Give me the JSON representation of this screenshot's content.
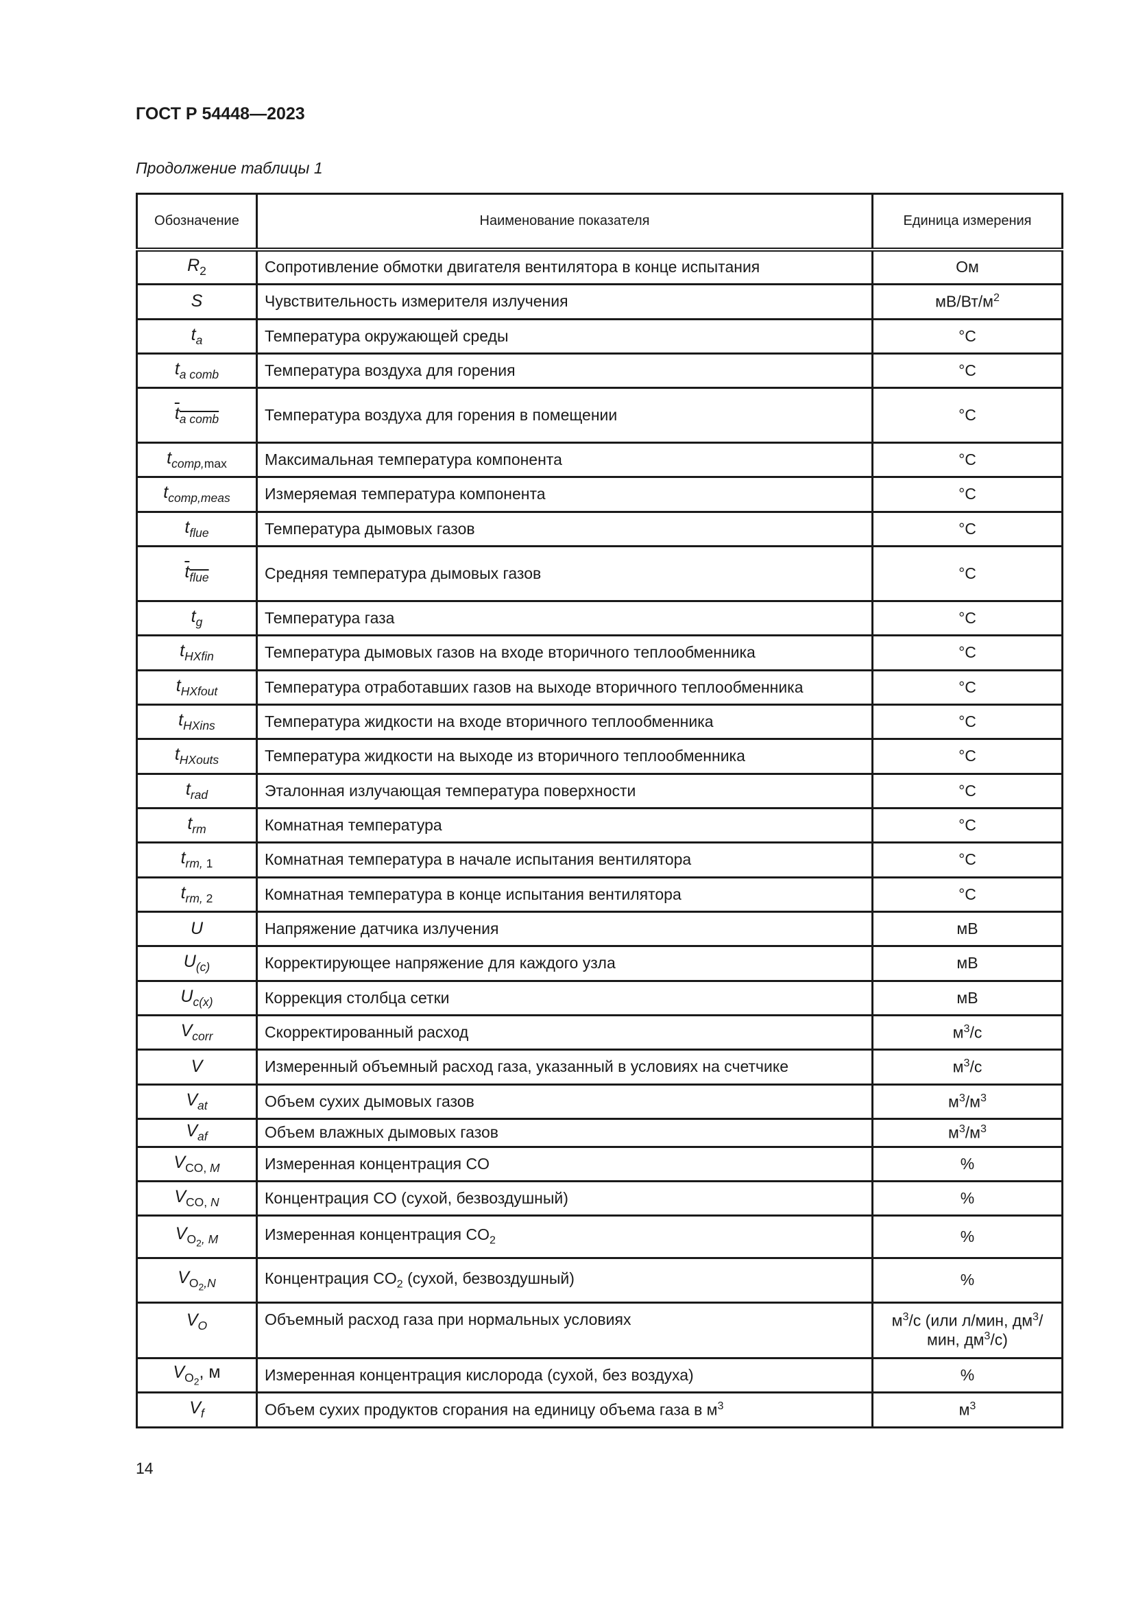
{
  "header": {
    "doc_title": "ГОСТ Р 54448—2023",
    "caption": "Продолжение таблицы 1"
  },
  "table": {
    "columns": [
      "Обозначение",
      "Наименование показателя",
      "Единица измерения"
    ],
    "rows": [
      {
        "symbol": {
          "base": "R",
          "sub": [
            {
              "t": "2",
              "up": true
            }
          ]
        },
        "name": [
          {
            "t": "Сопротивление обмотки двигателя вентилятора в конце испытания"
          }
        ],
        "unit": [
          {
            "t": "Ом"
          }
        ]
      },
      {
        "symbol": {
          "base": "S",
          "sub": []
        },
        "name": [
          {
            "t": "Чувствительность измерителя излучения"
          }
        ],
        "unit": [
          {
            "t": "мВ/Вт/м"
          },
          {
            "t": "2",
            "sup": true
          }
        ]
      },
      {
        "symbol": {
          "base": "t",
          "sub": [
            {
              "t": "a"
            }
          ]
        },
        "name": [
          {
            "t": "Температура окружающей среды"
          }
        ],
        "unit": [
          {
            "t": "°C"
          }
        ]
      },
      {
        "symbol": {
          "base": "t",
          "sub": [
            {
              "t": "a comb"
            }
          ]
        },
        "name": [
          {
            "t": "Температура воздуха для горения"
          }
        ],
        "unit": [
          {
            "t": "°C"
          }
        ]
      },
      {
        "symbol": {
          "base": "t",
          "sub": [
            {
              "t": "a comb"
            }
          ],
          "overline": true
        },
        "name": [
          {
            "t": "Температура воздуха для горения в помещении"
          }
        ],
        "unit": [
          {
            "t": "°C"
          }
        ]
      },
      {
        "symbol": {
          "base": "t",
          "sub": [
            {
              "t": "comp,"
            },
            {
              "t": "max",
              "up": true
            }
          ]
        },
        "name": [
          {
            "t": "Максимальная температура компонента"
          }
        ],
        "unit": [
          {
            "t": "°C"
          }
        ]
      },
      {
        "symbol": {
          "base": "t",
          "sub": [
            {
              "t": "comp,meas"
            }
          ]
        },
        "name": [
          {
            "t": "Измеряемая температура компонента"
          }
        ],
        "unit": [
          {
            "t": "°C"
          }
        ]
      },
      {
        "symbol": {
          "base": "t",
          "sub": [
            {
              "t": "flue"
            }
          ]
        },
        "name": [
          {
            "t": "Температура дымовых газов"
          }
        ],
        "unit": [
          {
            "t": "°C"
          }
        ]
      },
      {
        "symbol": {
          "base": "t",
          "sub": [
            {
              "t": "flue"
            }
          ],
          "overline": true
        },
        "name": [
          {
            "t": "Средняя температура дымовых газов"
          }
        ],
        "unit": [
          {
            "t": "°C"
          }
        ]
      },
      {
        "symbol": {
          "base": "t",
          "sub": [
            {
              "t": "g"
            }
          ]
        },
        "name": [
          {
            "t": "Температура газа"
          }
        ],
        "unit": [
          {
            "t": "°C"
          }
        ]
      },
      {
        "symbol": {
          "base": "t",
          "sub": [
            {
              "t": "HXfin"
            }
          ]
        },
        "name": [
          {
            "t": "Температура дымовых газов на входе вторичного теплообменника"
          }
        ],
        "unit": [
          {
            "t": "°C"
          }
        ]
      },
      {
        "symbol": {
          "base": "t",
          "sub": [
            {
              "t": "HXfout"
            }
          ]
        },
        "name": [
          {
            "t": "Температура отработавших газов на выходе вторичного теплообменника"
          }
        ],
        "unit": [
          {
            "t": "°C"
          }
        ]
      },
      {
        "symbol": {
          "base": "t",
          "sub": [
            {
              "t": "HXins"
            }
          ]
        },
        "name": [
          {
            "t": "Температура жидкости на входе вторичного теплообменника"
          }
        ],
        "unit": [
          {
            "t": "°C"
          }
        ]
      },
      {
        "symbol": {
          "base": "t",
          "sub": [
            {
              "t": "HXouts"
            }
          ]
        },
        "name": [
          {
            "t": "Температура жидкости на выходе из вторичного теплообменника"
          }
        ],
        "unit": [
          {
            "t": "°C"
          }
        ]
      },
      {
        "symbol": {
          "base": "t",
          "sub": [
            {
              "t": "rad"
            }
          ]
        },
        "name": [
          {
            "t": "Эталонная излучающая температура поверхности"
          }
        ],
        "unit": [
          {
            "t": "°C"
          }
        ]
      },
      {
        "symbol": {
          "base": "t",
          "sub": [
            {
              "t": "rm"
            }
          ]
        },
        "name": [
          {
            "t": "Комнатная температура"
          }
        ],
        "unit": [
          {
            "t": "°C"
          }
        ]
      },
      {
        "symbol": {
          "base": "t",
          "sub": [
            {
              "t": "rm, "
            },
            {
              "t": "1",
              "up": true
            }
          ]
        },
        "name": [
          {
            "t": "Комнатная температура в начале испытания вентилятора"
          }
        ],
        "unit": [
          {
            "t": "°C"
          }
        ]
      },
      {
        "symbol": {
          "base": "t",
          "sub": [
            {
              "t": "rm, "
            },
            {
              "t": "2",
              "up": true
            }
          ]
        },
        "name": [
          {
            "t": "Комнатная температура в конце испытания вентилятора"
          }
        ],
        "unit": [
          {
            "t": "°C"
          }
        ]
      },
      {
        "symbol": {
          "base": "U",
          "sub": []
        },
        "name": [
          {
            "t": "Напряжение датчика излучения"
          }
        ],
        "unit": [
          {
            "t": "мВ"
          }
        ]
      },
      {
        "symbol": {
          "base": "U",
          "sub": [
            {
              "t": "(c)"
            }
          ]
        },
        "name": [
          {
            "t": "Корректирующее напряжение для каждого узла"
          }
        ],
        "unit": [
          {
            "t": "мВ"
          }
        ]
      },
      {
        "symbol": {
          "base": "U",
          "sub": [
            {
              "t": "c(x)"
            }
          ]
        },
        "name": [
          {
            "t": "Коррекция столбца сетки"
          }
        ],
        "unit": [
          {
            "t": "мВ"
          }
        ]
      },
      {
        "symbol": {
          "base": "V",
          "sub": [
            {
              "t": "corr"
            }
          ]
        },
        "name": [
          {
            "t": "Скорректированный расход"
          }
        ],
        "unit": [
          {
            "t": "м"
          },
          {
            "t": "3",
            "sup": true
          },
          {
            "t": "/с"
          }
        ]
      },
      {
        "symbol": {
          "base": "V",
          "sub": []
        },
        "name": [
          {
            "t": "Измеренный объемный расход газа, указанный в условиях на счетчике"
          }
        ],
        "unit": [
          {
            "t": "м"
          },
          {
            "t": "3",
            "sup": true
          },
          {
            "t": "/с"
          }
        ]
      },
      {
        "symbol": {
          "base": "V",
          "sub": [
            {
              "t": "at"
            }
          ]
        },
        "name": [
          {
            "t": "Объем сухих дымовых газов"
          }
        ],
        "unit": [
          {
            "t": "м"
          },
          {
            "t": "3",
            "sup": true
          },
          {
            "t": "/м"
          },
          {
            "t": "3",
            "sup": true
          }
        ]
      },
      {
        "symbol": {
          "base": "V",
          "sub": [
            {
              "t": "af"
            }
          ]
        },
        "name": [
          {
            "t": "Объем влажных дымовых газов"
          }
        ],
        "unit": [
          {
            "t": "м"
          },
          {
            "t": "3",
            "sup": true
          },
          {
            "t": "/м"
          },
          {
            "t": "3",
            "sup": true
          }
        ]
      },
      {
        "symbol": {
          "base": "V",
          "sub": [
            {
              "t": "CO, ",
              "up": true
            },
            {
              "t": "M"
            }
          ]
        },
        "name": [
          {
            "t": "Измеренная концентрация CO"
          }
        ],
        "unit": [
          {
            "t": "%"
          }
        ]
      },
      {
        "symbol": {
          "base": "V",
          "sub": [
            {
              "t": "CO, ",
              "up": true
            },
            {
              "t": "N"
            }
          ]
        },
        "name": [
          {
            "t": "Концентрация CO (сухой, безвоздушный)"
          }
        ],
        "unit": [
          {
            "t": "%"
          }
        ]
      },
      {
        "symbol": {
          "base": "V",
          "sub": [
            {
              "t": "O",
              "up": true
            },
            {
              "t": "2",
              "up": true,
              "sub": true
            },
            {
              "t": ", M"
            }
          ]
        },
        "name": [
          {
            "t": "Измеренная концентрация CO"
          },
          {
            "t": "2",
            "sub": true
          }
        ],
        "unit": [
          {
            "t": "%"
          }
        ]
      },
      {
        "symbol": {
          "base": "V",
          "sub": [
            {
              "t": "O",
              "up": true
            },
            {
              "t": "2",
              "up": true,
              "sub": true
            },
            {
              "t": ",N"
            }
          ]
        },
        "name": [
          {
            "t": "Концентрация CO"
          },
          {
            "t": "2",
            "sub": true
          },
          {
            "t": " (сухой, безвоздушный)"
          }
        ],
        "unit": [
          {
            "t": "%"
          }
        ]
      },
      {
        "symbol": {
          "base": "V",
          "sub": [
            {
              "t": "O"
            }
          ]
        },
        "name": [
          {
            "t": "Объемный расход газа при нормальных условиях"
          }
        ],
        "unit": [
          {
            "t": "м"
          },
          {
            "t": "3",
            "sup": true
          },
          {
            "t": "/с (или л/мин, дм"
          },
          {
            "t": "3",
            "sup": true
          },
          {
            "t": "/мин, дм"
          },
          {
            "t": "3",
            "sup": true
          },
          {
            "t": "/с)"
          }
        ]
      },
      {
        "symbol": {
          "base": "V",
          "sub": [
            {
              "t": "O",
              "up": true
            },
            {
              "t": "2",
              "up": true,
              "sub": true
            }
          ],
          "tail": ", м"
        },
        "name": [
          {
            "t": "Измеренная концентрация кислорода (сухой, без воздуха)"
          }
        ],
        "unit": [
          {
            "t": "%"
          }
        ]
      },
      {
        "symbol": {
          "base": "V",
          "sub": [
            {
              "t": "f"
            }
          ]
        },
        "name": [
          {
            "t": "Объем сухих продуктов сгорания на единицу объема газа в м"
          },
          {
            "t": "3",
            "sup": true
          }
        ],
        "unit": [
          {
            "t": "м"
          },
          {
            "t": "3",
            "sup": true
          }
        ]
      }
    ]
  },
  "footer": {
    "page_number": "14"
  }
}
